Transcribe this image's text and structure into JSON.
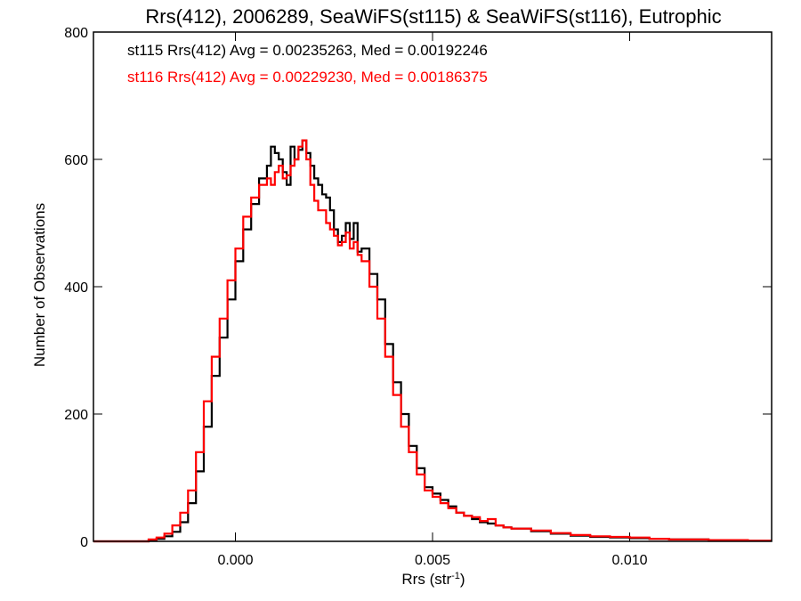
{
  "chart_data": {
    "type": "line",
    "title": "Rrs(412), 2006289, SeaWiFS(st115) & SeaWiFS(st116), Eutrophic",
    "xlabel": "Rrs (str",
    "xlabel_sup": "-1",
    "xlabel_close": ")",
    "ylabel": "Number of Observations",
    "xlim": [
      -0.0036,
      0.0136
    ],
    "ylim": [
      0,
      800
    ],
    "xticks": [
      0.0,
      0.005,
      0.01
    ],
    "xtick_labels": [
      "0.000",
      "0.005",
      "0.010"
    ],
    "yticks": [
      0,
      200,
      400,
      600,
      800
    ],
    "ytick_labels": [
      "0",
      "200",
      "400",
      "600",
      "800"
    ],
    "grid": false,
    "legend_position": "top-left",
    "series": [
      {
        "name": "st115",
        "label": "st115 Rrs(412) Avg = 0.00235263, Med = 0.00192246",
        "color": "#000000",
        "x": [
          -0.0036,
          -0.003,
          -0.0025,
          -0.0022,
          -0.002,
          -0.0018,
          -0.0016,
          -0.0014,
          -0.0012,
          -0.001,
          -0.0008,
          -0.0006,
          -0.0004,
          -0.0002,
          0.0,
          0.0002,
          0.0004,
          0.0006,
          0.0008,
          0.0009,
          0.001,
          0.0011,
          0.0012,
          0.0013,
          0.0014,
          0.0015,
          0.0016,
          0.0017,
          0.0018,
          0.0019,
          0.002,
          0.0021,
          0.0022,
          0.0023,
          0.0024,
          0.0025,
          0.0026,
          0.0027,
          0.0028,
          0.0029,
          0.003,
          0.0031,
          0.0032,
          0.0034,
          0.0036,
          0.0038,
          0.004,
          0.0042,
          0.0044,
          0.0046,
          0.0048,
          0.005,
          0.0052,
          0.0054,
          0.0056,
          0.0058,
          0.006,
          0.0062,
          0.0064,
          0.0066,
          0.0068,
          0.007,
          0.0075,
          0.008,
          0.0085,
          0.009,
          0.0095,
          0.01,
          0.0105,
          0.011,
          0.0115,
          0.012,
          0.0125,
          0.013,
          0.0136
        ],
        "y": [
          0,
          0,
          0,
          2,
          4,
          8,
          15,
          30,
          60,
          110,
          180,
          260,
          320,
          380,
          440,
          490,
          530,
          570,
          590,
          620,
          610,
          600,
          580,
          560,
          620,
          600,
          615,
          630,
          610,
          590,
          570,
          560,
          545,
          540,
          520,
          490,
          470,
          480,
          500,
          475,
          500,
          455,
          460,
          420,
          380,
          310,
          250,
          200,
          150,
          115,
          85,
          75,
          65,
          55,
          45,
          40,
          35,
          30,
          28,
          25,
          22,
          20,
          16,
          12,
          9,
          7,
          6,
          5,
          4,
          3,
          3,
          2,
          2,
          1,
          1
        ]
      },
      {
        "name": "st116",
        "label": "st116 Rrs(412) Avg = 0.00229230, Med = 0.00186375",
        "color": "#ff0000",
        "x": [
          -0.0036,
          -0.003,
          -0.0025,
          -0.0022,
          -0.002,
          -0.0018,
          -0.0016,
          -0.0014,
          -0.0012,
          -0.001,
          -0.0008,
          -0.0006,
          -0.0004,
          -0.0002,
          0.0,
          0.0002,
          0.0004,
          0.0006,
          0.0008,
          0.0009,
          0.001,
          0.0011,
          0.0012,
          0.0013,
          0.0014,
          0.0015,
          0.0016,
          0.0017,
          0.0018,
          0.0019,
          0.002,
          0.0021,
          0.0022,
          0.0023,
          0.0024,
          0.0025,
          0.0026,
          0.0027,
          0.0028,
          0.0029,
          0.003,
          0.0031,
          0.0032,
          0.0034,
          0.0036,
          0.0038,
          0.004,
          0.0042,
          0.0044,
          0.0046,
          0.0048,
          0.005,
          0.0052,
          0.0054,
          0.0056,
          0.0058,
          0.006,
          0.0062,
          0.0064,
          0.0066,
          0.0068,
          0.007,
          0.0075,
          0.008,
          0.0085,
          0.009,
          0.0095,
          0.01,
          0.0105,
          0.011,
          0.0115,
          0.012,
          0.0125,
          0.013,
          0.0136
        ],
        "y": [
          0,
          0,
          0,
          3,
          6,
          12,
          25,
          45,
          80,
          140,
          220,
          290,
          350,
          410,
          460,
          510,
          540,
          560,
          570,
          560,
          580,
          590,
          570,
          575,
          590,
          600,
          620,
          630,
          600,
          560,
          535,
          520,
          520,
          500,
          490,
          480,
          465,
          470,
          485,
          460,
          470,
          450,
          440,
          400,
          350,
          290,
          230,
          180,
          140,
          105,
          80,
          70,
          60,
          52,
          45,
          40,
          38,
          32,
          35,
          25,
          22,
          20,
          17,
          13,
          10,
          8,
          7,
          6,
          4,
          3,
          3,
          2,
          2,
          1,
          1
        ]
      }
    ]
  }
}
